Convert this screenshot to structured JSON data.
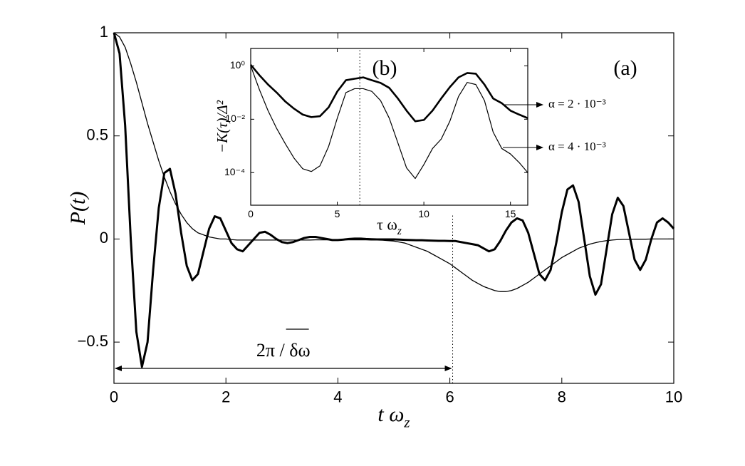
{
  "chart_data": [
    {
      "type": "line",
      "ylabel": "P(t)",
      "xlabel": "t ω",
      "xlabel_sub": "z",
      "annotations": [
        "(a)",
        "2π / δω"
      ],
      "vline": 6.05,
      "xlim": [
        0,
        10
      ],
      "ylim": [
        -0.7,
        1
      ],
      "xticks": [
        0,
        2,
        4,
        6,
        8,
        10
      ],
      "yticks": [
        {
          "value": -0.5,
          "label": "−0.5"
        },
        0,
        0.5,
        1
      ],
      "grid": false,
      "x": [
        0,
        0.1,
        0.2,
        0.3,
        0.4,
        0.5,
        0.6,
        0.7,
        0.8,
        0.9,
        1,
        1.1,
        1.2,
        1.3,
        1.4,
        1.5,
        1.6,
        1.7,
        1.8,
        1.9,
        2,
        2.1,
        2.2,
        2.3,
        2.4,
        2.5,
        2.6,
        2.7,
        2.8,
        2.9,
        3,
        3.1,
        3.2,
        3.3,
        3.4,
        3.5,
        3.6,
        3.7,
        3.8,
        3.9,
        4,
        4.1,
        4.2,
        4.3,
        4.4,
        4.5,
        4.6,
        4.7,
        4.8,
        4.9,
        5,
        5.1,
        5.2,
        5.3,
        5.4,
        5.5,
        5.6,
        5.7,
        5.8,
        5.9,
        6,
        6.1,
        6.2,
        6.3,
        6.4,
        6.5,
        6.6,
        6.7,
        6.8,
        6.9,
        7,
        7.1,
        7.2,
        7.3,
        7.4,
        7.5,
        7.6,
        7.7,
        7.8,
        7.9,
        8,
        8.1,
        8.2,
        8.3,
        8.4,
        8.5,
        8.6,
        8.7,
        8.8,
        8.9,
        9,
        9.1,
        9.2,
        9.3,
        9.4,
        9.5,
        9.6,
        9.7,
        9.8,
        9.9,
        10
      ],
      "series": [
        {
          "color": "#000000",
          "width": 3,
          "values": [
            1,
            0.9,
            0.55,
            0,
            -0.45,
            -0.62,
            -0.5,
            -0.15,
            0.15,
            0.32,
            0.34,
            0.22,
            0.03,
            -0.13,
            -0.2,
            -0.17,
            -0.06,
            0.05,
            0.11,
            0.1,
            0.04,
            -0.02,
            -0.05,
            -0.06,
            -0.03,
            0,
            0.03,
            0.035,
            0.02,
            0,
            -0.015,
            -0.02,
            -0.015,
            -0.005,
            0.005,
            0.01,
            0.01,
            0.005,
            0,
            -0.005,
            -0.005,
            -0.003,
            0,
            0.002,
            0.002,
            0,
            -0.001,
            -0.002,
            -0.002,
            -0.002,
            -0.002,
            -0.003,
            -0.004,
            -0.005,
            -0.006,
            -0.006,
            -0.007,
            -0.008,
            -0.009,
            -0.009,
            -0.01,
            -0.01,
            -0.015,
            -0.02,
            -0.025,
            -0.03,
            -0.045,
            -0.06,
            -0.05,
            -0.01,
            0.04,
            0.08,
            0.1,
            0.09,
            0.03,
            -0.07,
            -0.17,
            -0.2,
            -0.15,
            -0.02,
            0.13,
            0.24,
            0.26,
            0.18,
            0,
            -0.18,
            -0.27,
            -0.22,
            -0.05,
            0.12,
            0.2,
            0.16,
            0.03,
            -0.1,
            -0.15,
            -0.1,
            0,
            0.08,
            0.1,
            0.08,
            0.05
          ]
        },
        {
          "color": "#000000",
          "width": 1.3,
          "values": [
            1,
            0.98,
            0.93,
            0.85,
            0.76,
            0.66,
            0.56,
            0.47,
            0.38,
            0.3,
            0.23,
            0.17,
            0.12,
            0.08,
            0.05,
            0.03,
            0.02,
            0.01,
            0.005,
            0,
            0,
            -0.003,
            -0.005,
            -0.005,
            -0.005,
            -0.005,
            -0.005,
            -0.005,
            -0.005,
            -0.005,
            -0.005,
            -0.005,
            -0.005,
            -0.005,
            -0.005,
            -0.005,
            -0.004,
            -0.004,
            -0.004,
            -0.004,
            -0.004,
            -0.004,
            -0.004,
            -0.004,
            -0.004,
            -0.004,
            -0.005,
            -0.005,
            -0.006,
            -0.008,
            -0.01,
            -0.015,
            -0.02,
            -0.03,
            -0.04,
            -0.05,
            -0.06,
            -0.075,
            -0.09,
            -0.105,
            -0.12,
            -0.14,
            -0.16,
            -0.18,
            -0.2,
            -0.215,
            -0.23,
            -0.24,
            -0.25,
            -0.255,
            -0.255,
            -0.25,
            -0.24,
            -0.225,
            -0.21,
            -0.19,
            -0.17,
            -0.15,
            -0.13,
            -0.11,
            -0.09,
            -0.075,
            -0.06,
            -0.045,
            -0.035,
            -0.025,
            -0.018,
            -0.012,
            -0.008,
            -0.005,
            -0.003,
            -0.002,
            -0.002,
            -0.001,
            -0.001,
            -0.001,
            0,
            0,
            0,
            0,
            0
          ]
        }
      ]
    },
    {
      "type": "line",
      "ylabel": "−K(τ)/Δ²",
      "xlabel": "τ ω",
      "xlabel_sub": "z",
      "annotations": [
        "(b)"
      ],
      "vline": 6.3,
      "log_y": true,
      "xlim": [
        0,
        16
      ],
      "ylim": [
        6e-06,
        4.5
      ],
      "xticks": [
        0,
        5,
        10,
        15
      ],
      "yticks": [
        {
          "value": 1,
          "label": "10⁰"
        },
        {
          "value": 0.01,
          "label": "10⁻²"
        },
        {
          "value": 0.0001,
          "label": "10⁻⁴"
        }
      ],
      "grid": false,
      "x": [
        0,
        0.5,
        1,
        1.5,
        2,
        2.5,
        3,
        3.5,
        4,
        4.5,
        5,
        5.5,
        6,
        6.5,
        7,
        7.5,
        8,
        8.5,
        9,
        9.5,
        10,
        10.5,
        11,
        11.5,
        12,
        12.5,
        13,
        13.5,
        14,
        14.5,
        15,
        15.5,
        16
      ],
      "series": [
        {
          "name": "α = 2 · 10⁻³",
          "color": "#000000",
          "width": 2.6,
          "values": [
            1.1,
            0.45,
            0.2,
            0.1,
            0.046,
            0.025,
            0.015,
            0.012,
            0.013,
            0.028,
            0.11,
            0.29,
            0.33,
            0.37,
            0.29,
            0.23,
            0.15,
            0.06,
            0.021,
            0.0084,
            0.0094,
            0.021,
            0.06,
            0.16,
            0.37,
            0.54,
            0.51,
            0.2,
            0.06,
            0.04,
            0.021,
            0.015,
            0.011
          ]
        },
        {
          "name": "α = 4 · 10⁻³",
          "color": "#000000",
          "width": 1.2,
          "values": [
            1,
            0.13,
            0.021,
            0.0045,
            0.0012,
            0.00035,
            0.00014,
            0.00011,
            0.00018,
            0.00096,
            0.011,
            0.1,
            0.14,
            0.14,
            0.11,
            0.05,
            0.011,
            0.0013,
            0.00015,
            6e-05,
            0.0002,
            0.0008,
            0.0018,
            0.0084,
            0.071,
            0.24,
            0.2,
            0.05,
            0.0033,
            0.0008,
            0.0005,
            0.00024,
            0.0001
          ]
        }
      ]
    }
  ]
}
